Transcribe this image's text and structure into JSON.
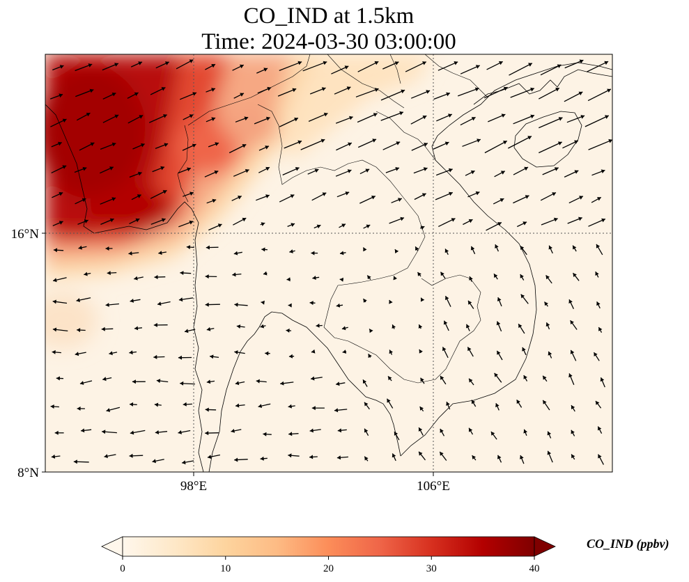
{
  "title": {
    "line1": "CO_IND at 1.5km",
    "line2": "Time: 2024-03-30 03:00:00"
  },
  "axes": {
    "lat_ticks": [
      {
        "value": 8,
        "label": "8°N"
      },
      {
        "value": 16,
        "label": "16°N"
      }
    ],
    "lon_ticks": [
      {
        "value": 98,
        "label": "98°E"
      },
      {
        "value": 106,
        "label": "106°E"
      }
    ],
    "lon_range": [
      93.1,
      112.0
    ],
    "lat_range": [
      8.0,
      21.9
    ],
    "gridlines": true
  },
  "colorbar": {
    "label": "CO_IND (ppbv)",
    "range": [
      0,
      40
    ],
    "ticks": [
      {
        "value": 0,
        "label": "0"
      },
      {
        "value": 10,
        "label": "10"
      },
      {
        "value": 20,
        "label": "20"
      },
      {
        "value": 30,
        "label": "30"
      },
      {
        "value": 40,
        "label": "40"
      }
    ],
    "colormap": "OrRd",
    "colors": [
      "#fff7ec",
      "#fee8c8",
      "#fdd49e",
      "#fdbb84",
      "#fc8d59",
      "#ef6548",
      "#d7301f",
      "#b30000",
      "#7f0000"
    ],
    "extend": "both"
  },
  "colors": {
    "grid": "#555555",
    "coastline": "#000000",
    "arrow": "#000000"
  }
}
